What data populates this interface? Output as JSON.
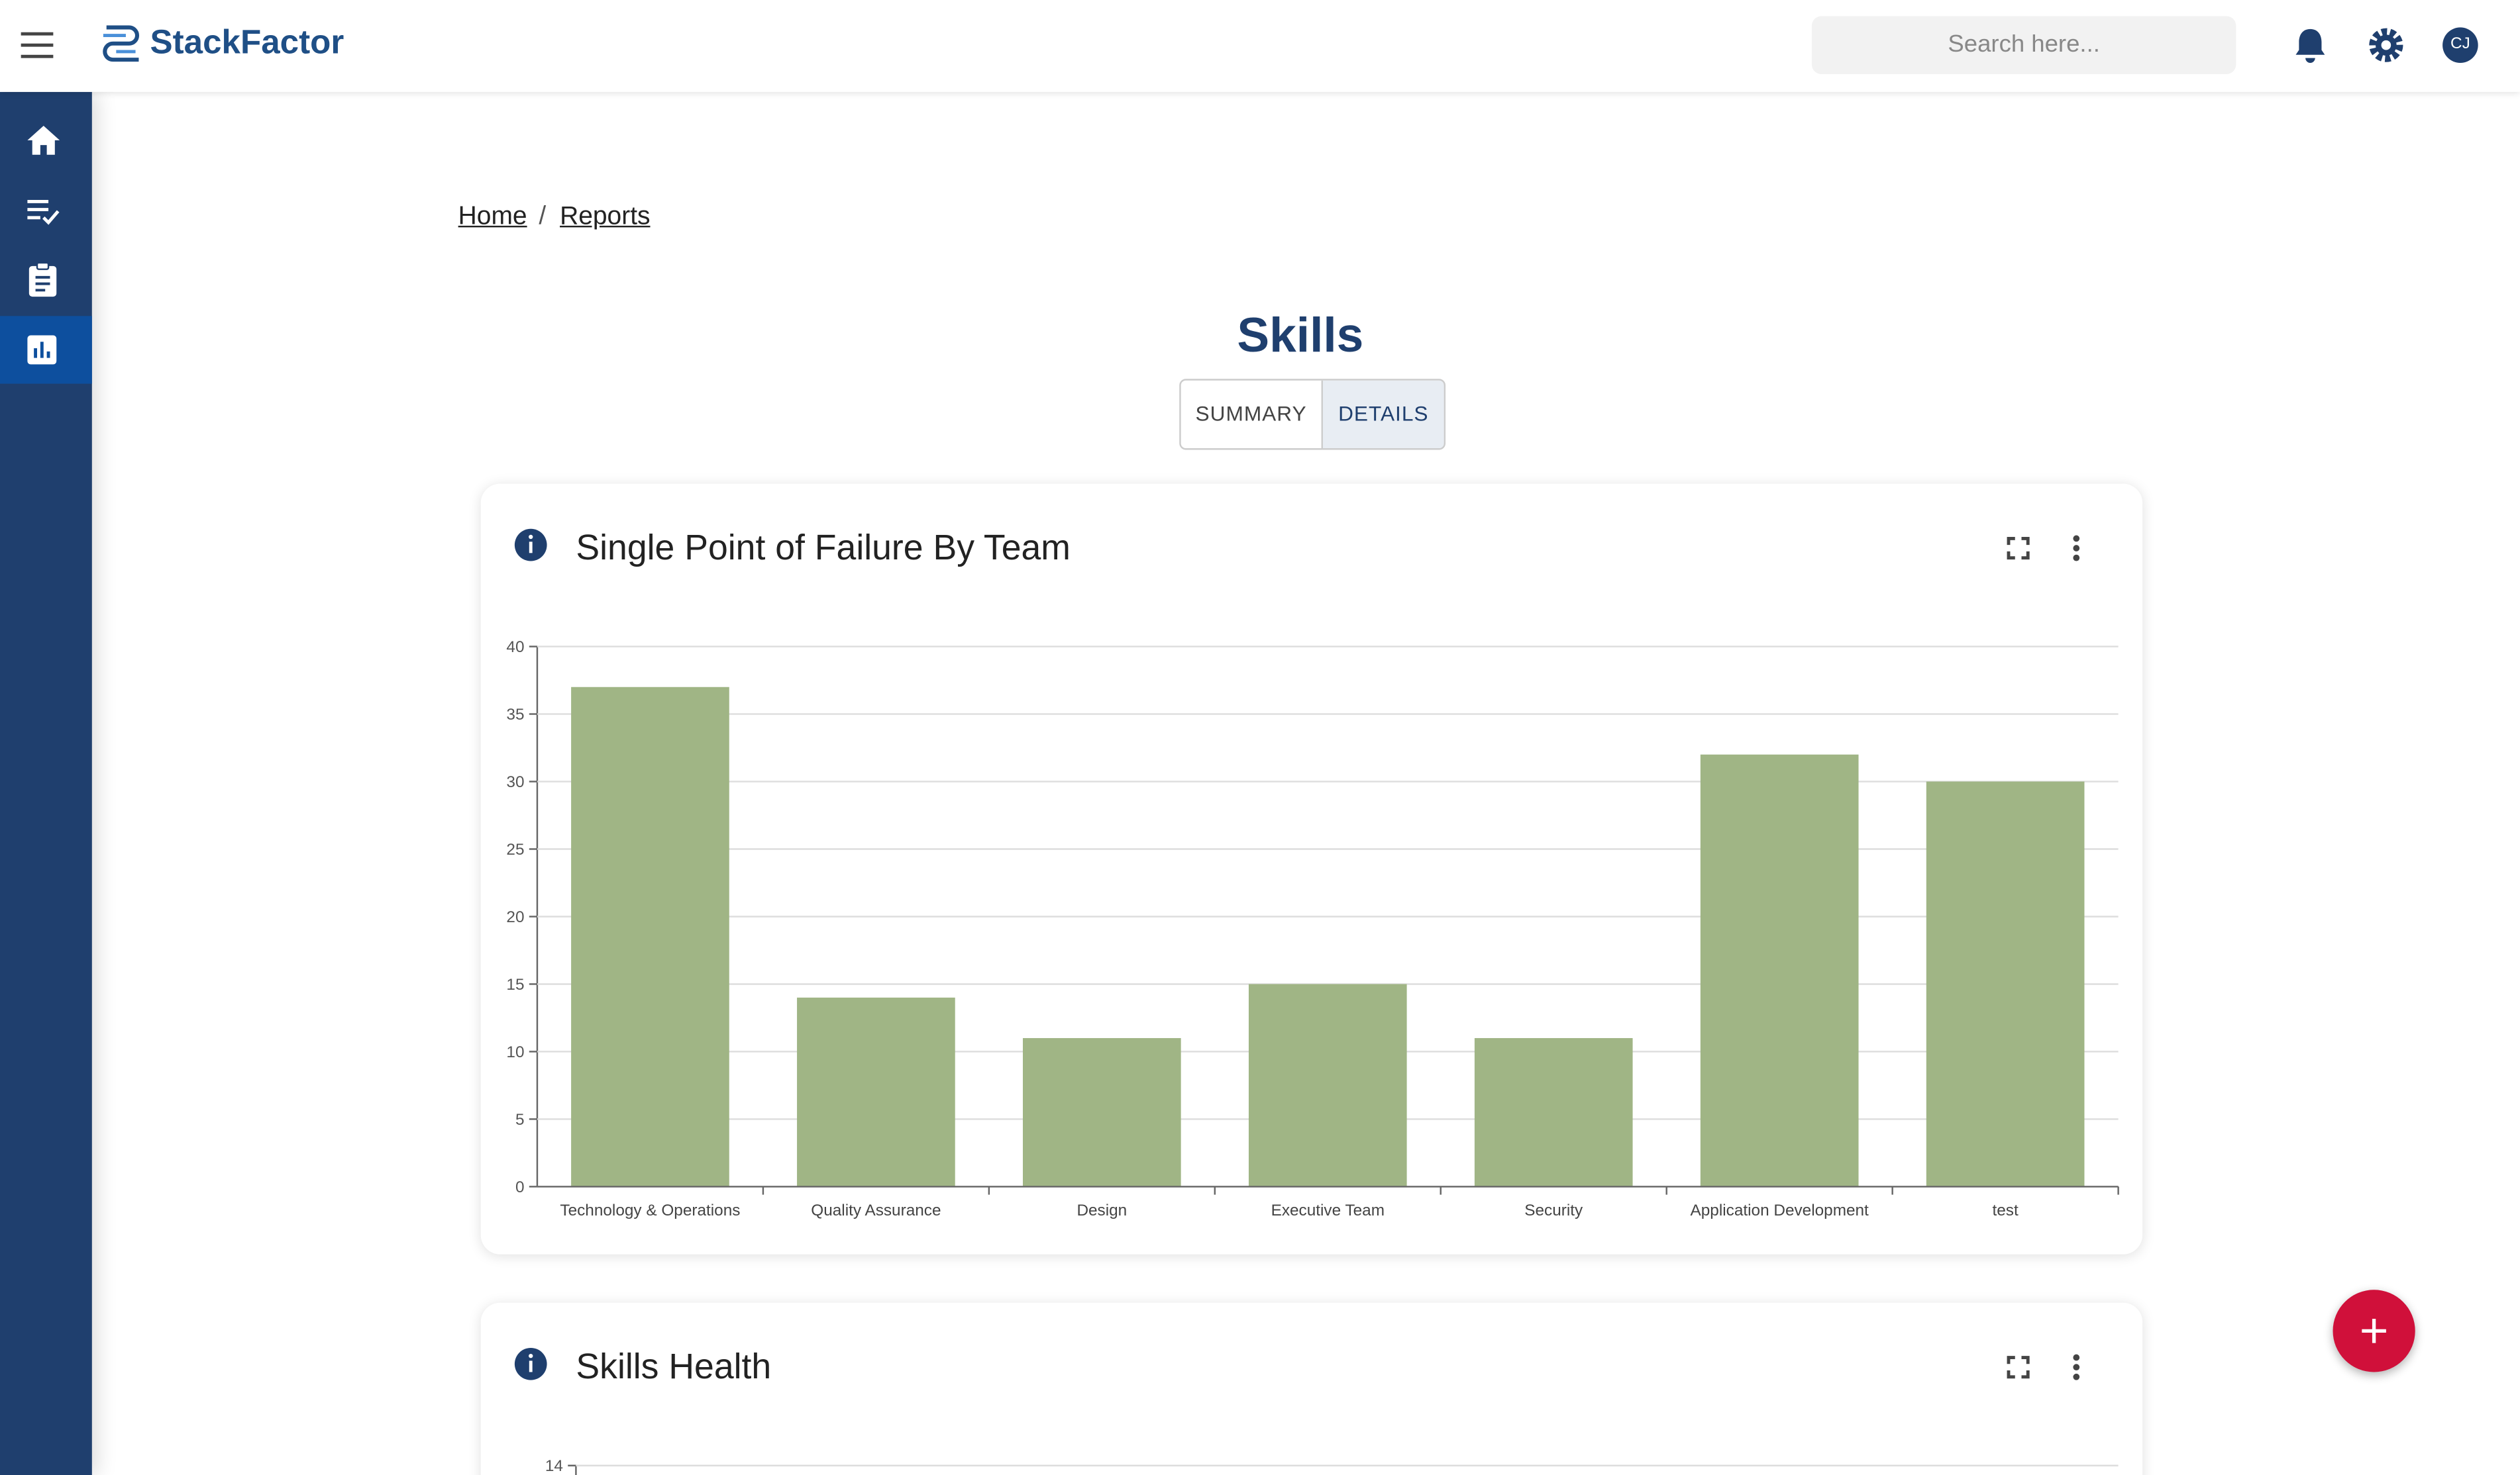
{
  "header": {
    "logo": "StackFactor",
    "search_placeholder": "Search here...",
    "avatar": "CJ"
  },
  "breadcrumb": [
    "Home",
    "Reports"
  ],
  "page_title": "Skills",
  "tabs": [
    "SUMMARY",
    "DETAILS"
  ],
  "chart_data": [
    {
      "type": "bar",
      "title": "Single Point of Failure By Team",
      "categories": [
        "Technology & Operations",
        "Quality Assurance",
        "Design",
        "Executive Team",
        "Security",
        "Application Development",
        "test"
      ],
      "values": [
        37,
        14,
        11,
        15,
        11,
        32,
        30
      ],
      "color": "#a0b585",
      "ylim": [
        0,
        40
      ],
      "yticks": [
        0,
        5,
        10,
        15,
        20,
        25,
        30,
        35,
        40
      ],
      "grid": true
    },
    {
      "type": "bar",
      "title": "Skills Health",
      "ylim": [
        0,
        14
      ],
      "yticks": [
        14
      ],
      "grid": true
    }
  ]
}
